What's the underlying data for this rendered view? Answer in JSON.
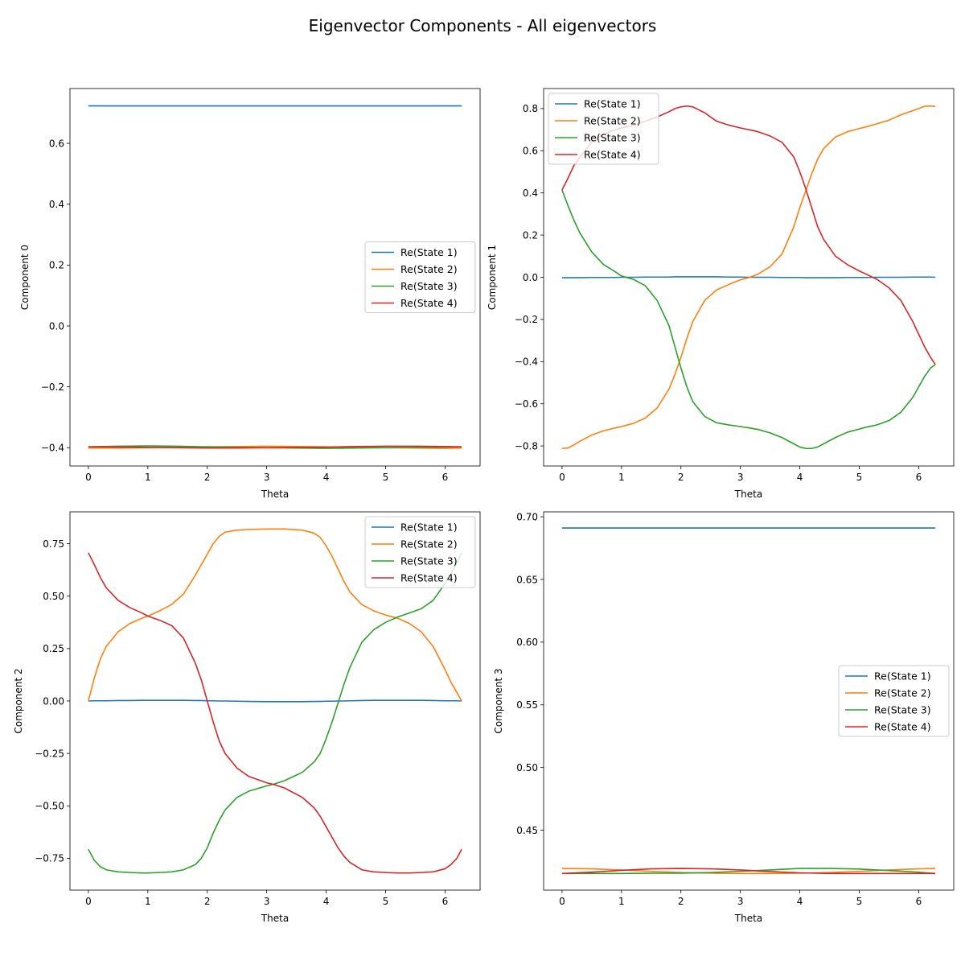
{
  "figure": {
    "title": "Eigenvector Components - All eigenvectors",
    "colors": {
      "Re(State 1)": "#1f77b4",
      "Re(State 2)": "#ff7f0e",
      "Re(State 3)": "#2ca02c",
      "Re(State 4)": "#d62728"
    }
  },
  "chart_data": [
    {
      "type": "line",
      "title": "",
      "xlabel": "Theta",
      "ylabel": "Component 0",
      "xlim": [
        -0.31,
        6.59
      ],
      "ylim": [
        -0.46,
        0.78
      ],
      "xticks": [
        0,
        1,
        2,
        3,
        4,
        5,
        6
      ],
      "yticks": [
        -0.4,
        -0.2,
        0.0,
        0.2,
        0.4,
        0.6
      ],
      "ytick_labels": [
        "−0.4",
        "−0.2",
        "0.0",
        "0.2",
        "0.4",
        "0.6"
      ],
      "legend": "center-right",
      "grid": false,
      "x": [
        0,
        0.5,
        1,
        1.5,
        2,
        2.5,
        3,
        3.5,
        4,
        4.5,
        5,
        5.5,
        6,
        6.28
      ],
      "series": [
        {
          "name": "Re(State 1)",
          "values": [
            0.723,
            0.723,
            0.723,
            0.723,
            0.723,
            0.723,
            0.723,
            0.723,
            0.723,
            0.723,
            0.723,
            0.723,
            0.723,
            0.723
          ]
        },
        {
          "name": "Re(State 2)",
          "values": [
            -0.401,
            -0.401,
            -0.4,
            -0.399,
            -0.397,
            -0.396,
            -0.395,
            -0.396,
            -0.397,
            -0.399,
            -0.4,
            -0.401,
            -0.402,
            -0.401
          ]
        },
        {
          "name": "Re(State 3)",
          "values": [
            -0.397,
            -0.395,
            -0.394,
            -0.395,
            -0.397,
            -0.399,
            -0.4,
            -0.401,
            -0.402,
            -0.401,
            -0.4,
            -0.399,
            -0.398,
            -0.397
          ]
        },
        {
          "name": "Re(State 4)",
          "values": [
            -0.397,
            -0.398,
            -0.399,
            -0.4,
            -0.401,
            -0.401,
            -0.4,
            -0.399,
            -0.398,
            -0.396,
            -0.395,
            -0.395,
            -0.396,
            -0.397
          ]
        }
      ]
    },
    {
      "type": "line",
      "title": "",
      "xlabel": "Theta",
      "ylabel": "Component 1",
      "xlim": [
        -0.31,
        6.59
      ],
      "ylim": [
        -0.895,
        0.895
      ],
      "xticks": [
        0,
        1,
        2,
        3,
        4,
        5,
        6
      ],
      "yticks": [
        -0.8,
        -0.6,
        -0.4,
        -0.2,
        0.0,
        0.2,
        0.4,
        0.6,
        0.8
      ],
      "ytick_labels": [
        "−0.8",
        "−0.6",
        "−0.4",
        "−0.2",
        "0.0",
        "0.2",
        "0.4",
        "0.6",
        "0.8"
      ],
      "legend": "upper-left",
      "grid": false,
      "x": [
        0,
        0.1,
        0.2,
        0.3,
        0.5,
        0.7,
        0.9,
        1.0,
        1.2,
        1.4,
        1.6,
        1.8,
        1.9,
        2.0,
        2.1,
        2.2,
        2.4,
        2.6,
        2.8,
        3.0,
        3.14,
        3.3,
        3.5,
        3.7,
        3.9,
        4.0,
        4.1,
        4.2,
        4.3,
        4.4,
        4.6,
        4.8,
        5.0,
        5.1,
        5.3,
        5.5,
        5.7,
        5.9,
        6.0,
        6.1,
        6.2,
        6.28
      ],
      "series": [
        {
          "name": "Re(State 1)",
          "values": [
            -0.002,
            -0.002,
            -0.002,
            -0.002,
            -0.001,
            -0.001,
            -0.001,
            0.0,
            0.0,
            0.001,
            0.001,
            0.001,
            0.002,
            0.002,
            0.002,
            0.002,
            0.002,
            0.002,
            0.001,
            0.001,
            0.0,
            0.0,
            0.0,
            -0.001,
            -0.001,
            -0.001,
            -0.002,
            -0.002,
            -0.002,
            -0.002,
            -0.002,
            -0.001,
            -0.001,
            -0.001,
            0.0,
            0.0,
            0.0,
            0.001,
            0.001,
            0.001,
            0.001,
            0.0
          ]
        },
        {
          "name": "Re(State 2)",
          "values": [
            -0.812,
            -0.81,
            -0.795,
            -0.778,
            -0.748,
            -0.728,
            -0.714,
            -0.708,
            -0.693,
            -0.668,
            -0.62,
            -0.53,
            -0.46,
            -0.38,
            -0.29,
            -0.21,
            -0.11,
            -0.06,
            -0.035,
            -0.012,
            -0.002,
            0.015,
            0.05,
            0.11,
            0.24,
            0.33,
            0.41,
            0.49,
            0.56,
            0.61,
            0.665,
            0.69,
            0.705,
            0.712,
            0.728,
            0.745,
            0.77,
            0.79,
            0.8,
            0.811,
            0.812,
            0.81
          ]
        },
        {
          "name": "Re(State 3)",
          "values": [
            0.414,
            0.34,
            0.27,
            0.21,
            0.12,
            0.06,
            0.025,
            0.006,
            -0.01,
            -0.04,
            -0.11,
            -0.23,
            -0.33,
            -0.43,
            -0.52,
            -0.59,
            -0.66,
            -0.69,
            -0.7,
            -0.708,
            -0.714,
            -0.722,
            -0.738,
            -0.76,
            -0.79,
            -0.805,
            -0.812,
            -0.812,
            -0.805,
            -0.79,
            -0.76,
            -0.735,
            -0.72,
            -0.712,
            -0.7,
            -0.68,
            -0.64,
            -0.57,
            -0.52,
            -0.47,
            -0.43,
            -0.414
          ]
        },
        {
          "name": "Re(State 4)",
          "values": [
            0.414,
            0.47,
            0.53,
            0.57,
            0.64,
            0.68,
            0.7,
            0.708,
            0.72,
            0.74,
            0.76,
            0.785,
            0.8,
            0.808,
            0.812,
            0.808,
            0.78,
            0.74,
            0.722,
            0.708,
            0.7,
            0.69,
            0.67,
            0.64,
            0.57,
            0.5,
            0.42,
            0.33,
            0.24,
            0.18,
            0.1,
            0.06,
            0.03,
            0.017,
            -0.01,
            -0.05,
            -0.11,
            -0.21,
            -0.27,
            -0.33,
            -0.38,
            -0.414
          ]
        }
      ]
    },
    {
      "type": "line",
      "title": "",
      "xlabel": "Theta",
      "ylabel": "Component 2",
      "xlim": [
        -0.31,
        6.59
      ],
      "ylim": [
        -0.902,
        0.902
      ],
      "xticks": [
        0,
        1,
        2,
        3,
        4,
        5,
        6
      ],
      "yticks": [
        -0.75,
        -0.5,
        -0.25,
        0.0,
        0.25,
        0.5,
        0.75
      ],
      "ytick_labels": [
        "−0.75",
        "−0.50",
        "−0.25",
        "0.00",
        "0.25",
        "0.50",
        "0.75"
      ],
      "legend": "upper-right",
      "grid": false,
      "x": [
        0,
        0.1,
        0.2,
        0.3,
        0.5,
        0.7,
        0.9,
        1.0,
        1.2,
        1.4,
        1.6,
        1.8,
        1.9,
        2.0,
        2.1,
        2.2,
        2.3,
        2.5,
        2.7,
        3.0,
        3.14,
        3.3,
        3.6,
        3.8,
        3.9,
        4.0,
        4.1,
        4.2,
        4.3,
        4.4,
        4.6,
        4.8,
        5.0,
        5.2,
        5.4,
        5.6,
        5.8,
        6.0,
        6.1,
        6.2,
        6.28
      ],
      "series": [
        {
          "name": "Re(State 1)",
          "values": [
            0.0,
            0.001,
            0.001,
            0.001,
            0.002,
            0.002,
            0.003,
            0.003,
            0.003,
            0.003,
            0.003,
            0.002,
            0.002,
            0.001,
            0.001,
            0.0,
            0.0,
            -0.001,
            -0.002,
            -0.003,
            -0.003,
            -0.003,
            -0.003,
            -0.002,
            -0.002,
            -0.001,
            -0.001,
            0.0,
            0.0,
            0.001,
            0.002,
            0.003,
            0.003,
            0.003,
            0.003,
            0.003,
            0.002,
            0.001,
            0.001,
            0.001,
            0.0
          ]
        },
        {
          "name": "Re(State 2)",
          "values": [
            0.0,
            0.11,
            0.2,
            0.26,
            0.33,
            0.37,
            0.395,
            0.405,
            0.43,
            0.46,
            0.51,
            0.6,
            0.65,
            0.7,
            0.75,
            0.785,
            0.805,
            0.815,
            0.818,
            0.82,
            0.82,
            0.82,
            0.815,
            0.8,
            0.78,
            0.74,
            0.69,
            0.63,
            0.57,
            0.52,
            0.46,
            0.43,
            0.41,
            0.395,
            0.37,
            0.33,
            0.26,
            0.15,
            0.09,
            0.04,
            0.0
          ]
        },
        {
          "name": "Re(State 3)",
          "values": [
            -0.707,
            -0.76,
            -0.79,
            -0.805,
            -0.815,
            -0.818,
            -0.82,
            -0.82,
            -0.818,
            -0.815,
            -0.805,
            -0.78,
            -0.75,
            -0.7,
            -0.63,
            -0.57,
            -0.52,
            -0.46,
            -0.43,
            -0.405,
            -0.395,
            -0.38,
            -0.34,
            -0.29,
            -0.25,
            -0.18,
            -0.1,
            -0.01,
            0.08,
            0.16,
            0.28,
            0.34,
            0.375,
            0.4,
            0.42,
            0.44,
            0.48,
            0.56,
            0.61,
            0.66,
            0.707
          ]
        },
        {
          "name": "Re(State 4)",
          "values": [
            0.707,
            0.65,
            0.59,
            0.54,
            0.48,
            0.445,
            0.42,
            0.405,
            0.385,
            0.36,
            0.3,
            0.18,
            0.1,
            0.0,
            -0.1,
            -0.19,
            -0.25,
            -0.32,
            -0.36,
            -0.39,
            -0.4,
            -0.415,
            -0.46,
            -0.51,
            -0.55,
            -0.6,
            -0.65,
            -0.7,
            -0.74,
            -0.77,
            -0.805,
            -0.815,
            -0.818,
            -0.82,
            -0.82,
            -0.818,
            -0.815,
            -0.8,
            -0.78,
            -0.75,
            -0.707
          ]
        }
      ]
    },
    {
      "type": "line",
      "title": "",
      "xlabel": "Theta",
      "ylabel": "Component 3",
      "xlim": [
        -0.31,
        6.59
      ],
      "ylim": [
        0.4022,
        0.7039
      ],
      "xticks": [
        0,
        1,
        2,
        3,
        4,
        5,
        6
      ],
      "yticks": [
        0.45,
        0.5,
        0.55,
        0.6,
        0.65,
        0.7
      ],
      "ytick_labels": [
        "0.45",
        "0.50",
        "0.55",
        "0.60",
        "0.65",
        "0.70"
      ],
      "legend": "center-right",
      "grid": false,
      "x": [
        0,
        0.5,
        1,
        1.5,
        2,
        2.5,
        3,
        3.5,
        4,
        4.5,
        5,
        5.5,
        6,
        6.28
      ],
      "series": [
        {
          "name": "Re(State 1)",
          "values": [
            0.691,
            0.691,
            0.691,
            0.691,
            0.691,
            0.691,
            0.691,
            0.691,
            0.691,
            0.691,
            0.691,
            0.691,
            0.691,
            0.691
          ]
        },
        {
          "name": "Re(State 2)",
          "values": [
            0.4195,
            0.4192,
            0.4183,
            0.4172,
            0.4162,
            0.4157,
            0.4155,
            0.4155,
            0.4157,
            0.4162,
            0.4172,
            0.4183,
            0.4192,
            0.4195
          ]
        },
        {
          "name": "Re(State 3)",
          "values": [
            0.4155,
            0.4155,
            0.4155,
            0.4157,
            0.4157,
            0.4162,
            0.4172,
            0.4183,
            0.4195,
            0.4195,
            0.419,
            0.4178,
            0.4165,
            0.4155
          ]
        },
        {
          "name": "Re(State 4)",
          "values": [
            0.4155,
            0.4165,
            0.418,
            0.4192,
            0.4195,
            0.4192,
            0.4183,
            0.417,
            0.416,
            0.4155,
            0.4155,
            0.4155,
            0.4155,
            0.4155
          ]
        }
      ]
    }
  ]
}
